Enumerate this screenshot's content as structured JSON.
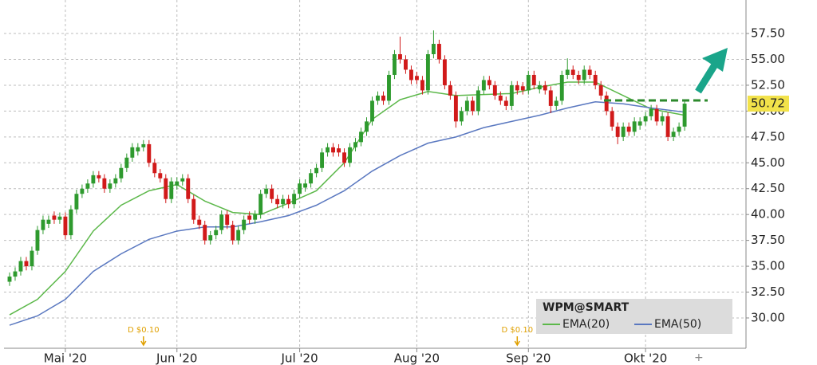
{
  "chart_data": {
    "type": "candlestick",
    "title": "WPM@SMART",
    "up_color": "#2e9a2e",
    "down_color": "#d11a1a",
    "open": [
      33.5,
      34,
      34.5,
      35.5,
      35,
      36.5,
      38.5,
      39.1,
      39.9,
      39.5,
      39.8,
      38,
      40.5,
      42,
      42.5,
      43,
      43.8,
      43.5,
      42.5,
      43,
      43.5,
      44.5,
      45.5,
      46.1,
      46.5,
      46.8,
      45,
      44,
      43.5,
      41.5,
      42.8,
      43.2,
      43.5,
      41.5,
      39.5,
      39,
      37.5,
      38,
      38.5,
      40,
      39,
      37.5,
      38.5,
      39.9,
      39.5,
      40,
      42,
      42.5,
      41.5,
      41,
      41.5,
      41,
      42,
      42.6,
      43,
      44,
      44.5,
      46,
      46.5,
      46.4,
      46,
      45,
      46.5,
      47,
      48,
      49,
      51,
      51.5,
      51,
      53.5,
      55.5,
      55,
      54,
      53.4,
      53,
      52,
      55.5,
      56.5,
      55,
      52.5,
      51.5,
      49,
      50,
      51,
      50,
      52,
      53,
      52.5,
      51.5,
      51,
      50.5,
      52.5,
      52.4,
      52,
      53.5,
      52.1,
      52.5,
      52,
      50.5,
      51,
      53.5,
      54,
      53.5,
      53,
      54,
      53.5,
      52.5,
      51.5,
      50,
      48.5,
      47.5,
      48.5,
      48,
      48.6,
      49,
      49.5,
      50.2,
      49,
      49.5,
      47.5,
      48,
      48.5
    ],
    "high": [
      34.4,
      34.9,
      35.9,
      35.9,
      36.9,
      38.9,
      39.9,
      39.9,
      40.3,
      40.2,
      40.2,
      40.9,
      42.4,
      42.9,
      43.4,
      44.2,
      44.2,
      43.9,
      43.4,
      43.9,
      44.9,
      45.9,
      46.9,
      46.9,
      47.2,
      47.2,
      45.4,
      44.4,
      43.9,
      43.6,
      43.6,
      43.9,
      43.9,
      41.9,
      39.9,
      39.4,
      38.4,
      38.9,
      40.4,
      40.4,
      39.4,
      38.9,
      39.9,
      40.3,
      40.4,
      42.4,
      42.9,
      42.9,
      41.9,
      41.9,
      41.9,
      42.4,
      43.4,
      43.4,
      44.4,
      44.9,
      46.4,
      46.9,
      46.9,
      46.8,
      46.4,
      46.9,
      47.4,
      48.4,
      49.4,
      51.4,
      51.9,
      51.9,
      53.9,
      55.9,
      57.2,
      55.4,
      54.4,
      53.8,
      53.4,
      55.9,
      57.8,
      56.9,
      55.4,
      52.9,
      51.9,
      50.4,
      51.4,
      51.4,
      52.4,
      53.4,
      53.4,
      52.9,
      51.9,
      51.4,
      52.9,
      52.9,
      52.8,
      53.9,
      53.9,
      52.9,
      52.9,
      52.4,
      51.4,
      53.9,
      55.1,
      54.4,
      53.9,
      54.4,
      54.4,
      53.9,
      52.9,
      51.9,
      50.4,
      48.9,
      48.9,
      48.9,
      49.4,
      49.4,
      49.9,
      50.6,
      50.6,
      49.9,
      49.9,
      48.4,
      48.9,
      51.1
    ],
    "low": [
      33.1,
      33.6,
      34.1,
      34.6,
      34.6,
      36.1,
      38.1,
      38.7,
      39.1,
      39.1,
      37.6,
      37.6,
      40.1,
      41.6,
      42.1,
      42.6,
      43.1,
      42.1,
      42.1,
      42.6,
      43.1,
      44.1,
      45.1,
      45.7,
      46.1,
      44.6,
      43.6,
      43.1,
      41.1,
      41.1,
      42.4,
      42.8,
      41.1,
      39.1,
      38.6,
      37.1,
      37.1,
      37.6,
      38.1,
      38.6,
      37.1,
      37.1,
      38.1,
      39.1,
      39.1,
      39.6,
      41.6,
      41.1,
      40.6,
      40.6,
      40.6,
      40.6,
      41.6,
      42.2,
      42.6,
      43.6,
      44.1,
      45.6,
      45.6,
      45.6,
      44.6,
      44.6,
      46.1,
      46.6,
      47.6,
      48.6,
      50.6,
      50.6,
      50.6,
      53.1,
      54.6,
      53.6,
      52.6,
      52.6,
      51.6,
      51.6,
      55.1,
      54.6,
      52.1,
      51.1,
      48.4,
      48.6,
      49.6,
      49.6,
      49.6,
      51.6,
      52.1,
      51.1,
      50.6,
      50.1,
      50.1,
      51.6,
      51.6,
      51.6,
      52.1,
      51.7,
      51.6,
      49.8,
      50.1,
      50.6,
      53.1,
      53.1,
      52.6,
      52.6,
      53.1,
      52.1,
      51.1,
      49.6,
      48.1,
      46.8,
      47.1,
      47.6,
      47.6,
      48.2,
      48.6,
      49.1,
      48.6,
      48.6,
      47.1,
      47.1,
      47.6,
      48.1
    ],
    "close": [
      34,
      34.5,
      35.5,
      35,
      36.5,
      38.5,
      39.5,
      39.5,
      39.5,
      39.8,
      38,
      40.5,
      42,
      42.5,
      43,
      43.8,
      43.5,
      42.5,
      43,
      43.5,
      44.5,
      45.5,
      46.5,
      46.5,
      46.8,
      45,
      44,
      43.5,
      41.5,
      43.2,
      43.2,
      43.5,
      41.5,
      39.5,
      39,
      37.5,
      38,
      38.5,
      40,
      39,
      37.5,
      38.5,
      39.5,
      39.5,
      40,
      42,
      42.5,
      41.5,
      41,
      41.5,
      41,
      42,
      43,
      43,
      44,
      44.5,
      46,
      46.5,
      46,
      46,
      45,
      46.5,
      47,
      48,
      49,
      51,
      51.5,
      51,
      53.5,
      55.5,
      55,
      54,
      53,
      53,
      52,
      55.5,
      56.5,
      55,
      52.5,
      51.5,
      49,
      50,
      51,
      50,
      52,
      53,
      52.5,
      51.5,
      51,
      50.5,
      52.5,
      52,
      52,
      53.5,
      52.5,
      52.5,
      52,
      50.5,
      51,
      53.5,
      54,
      53.5,
      53,
      54,
      53.5,
      52.5,
      51.5,
      50,
      48.5,
      47.5,
      48.5,
      48,
      49,
      49,
      49.5,
      50.2,
      49,
      49.5,
      47.5,
      48,
      48.5,
      50.72
    ],
    "series": [
      {
        "name": "EMA(20)",
        "color": "#5cb84a",
        "x": [
          0,
          5,
          10,
          15,
          20,
          25,
          30,
          35,
          40,
          45,
          50,
          55,
          60,
          65,
          70,
          75,
          80,
          85,
          90,
          95,
          100,
          105,
          110,
          115,
          121
        ],
        "values": [
          30.3,
          31.8,
          34.5,
          38.4,
          40.9,
          42.3,
          42.9,
          41.3,
          40.2,
          40,
          41.1,
          42.3,
          45,
          49.2,
          51.1,
          51.9,
          51.5,
          51.6,
          51.7,
          52.3,
          52.8,
          52.8,
          51.5,
          50.2,
          49.6
        ]
      },
      {
        "name": "EMA(50)",
        "color": "#5a78c0",
        "x": [
          0,
          5,
          10,
          15,
          20,
          25,
          30,
          35,
          40,
          45,
          50,
          55,
          60,
          65,
          70,
          75,
          80,
          85,
          90,
          95,
          100,
          105,
          110,
          115,
          121
        ],
        "values": [
          29.3,
          30.2,
          31.8,
          34.5,
          36.2,
          37.6,
          38.4,
          38.8,
          38.8,
          39.3,
          39.9,
          40.9,
          42.3,
          44.2,
          45.7,
          46.9,
          47.5,
          48.4,
          49,
          49.6,
          50.3,
          50.9,
          50.7,
          50.3,
          49.9
        ]
      }
    ],
    "annotations": [
      {
        "text": "D $0.10",
        "x": 24
      },
      {
        "text": "D $0.10",
        "x": 91
      }
    ],
    "xlim": [
      -1,
      132
    ],
    "xticks": [
      {
        "value": 10,
        "label": "Mai '20"
      },
      {
        "value": 30,
        "label": "Jun '20"
      },
      {
        "value": 52,
        "label": "Jul '20"
      },
      {
        "value": 73,
        "label": "Aug '20"
      },
      {
        "value": 93,
        "label": "Sep '20"
      },
      {
        "value": 114,
        "label": "Okt '20"
      }
    ],
    "ylim": [
      27.07,
      60.74
    ],
    "yticks": [
      {
        "value": 30,
        "label": "30.00"
      },
      {
        "value": 32.5,
        "label": "32.50"
      },
      {
        "value": 35,
        "label": "35.00"
      },
      {
        "value": 37.5,
        "label": "37.50"
      },
      {
        "value": 40,
        "label": "40.00"
      },
      {
        "value": 42.5,
        "label": "42.50"
      },
      {
        "value": 45,
        "label": "45.00"
      },
      {
        "value": 47.5,
        "label": "47.50"
      },
      {
        "value": 50,
        "label": "50.00"
      },
      {
        "value": 52.5,
        "label": "52.50"
      },
      {
        "value": 55,
        "label": "55.00"
      },
      {
        "value": 57.5,
        "label": "57.50"
      }
    ],
    "grid": true
  }
}
